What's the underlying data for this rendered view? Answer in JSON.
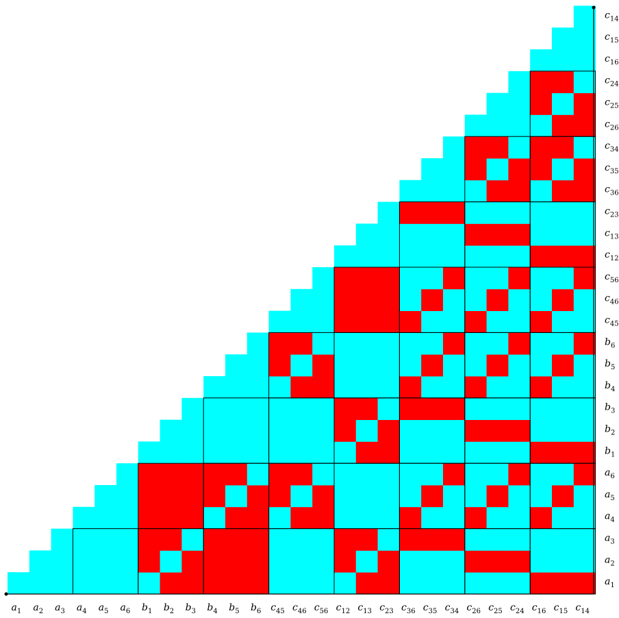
{
  "colors": {
    "one": "#ff0000",
    "zero": "#00ffff",
    "grid": "#000000"
  },
  "variables": [
    {
      "base": "a",
      "sub": "1"
    },
    {
      "base": "a",
      "sub": "2"
    },
    {
      "base": "a",
      "sub": "3"
    },
    {
      "base": "a",
      "sub": "4"
    },
    {
      "base": "a",
      "sub": "5"
    },
    {
      "base": "a",
      "sub": "6"
    },
    {
      "base": "b",
      "sub": "1"
    },
    {
      "base": "b",
      "sub": "2"
    },
    {
      "base": "b",
      "sub": "3"
    },
    {
      "base": "b",
      "sub": "4"
    },
    {
      "base": "b",
      "sub": "5"
    },
    {
      "base": "b",
      "sub": "6"
    },
    {
      "base": "c",
      "sub": "45"
    },
    {
      "base": "c",
      "sub": "46"
    },
    {
      "base": "c",
      "sub": "56"
    },
    {
      "base": "c",
      "sub": "12"
    },
    {
      "base": "c",
      "sub": "13"
    },
    {
      "base": "c",
      "sub": "23"
    },
    {
      "base": "c",
      "sub": "36"
    },
    {
      "base": "c",
      "sub": "35"
    },
    {
      "base": "c",
      "sub": "34"
    },
    {
      "base": "c",
      "sub": "26"
    },
    {
      "base": "c",
      "sub": "25"
    },
    {
      "base": "c",
      "sub": "24"
    },
    {
      "base": "c",
      "sub": "16"
    },
    {
      "base": "c",
      "sub": "15"
    },
    {
      "base": "c",
      "sub": "14"
    }
  ],
  "blocks": [
    {
      "row": 0,
      "col": 0,
      "pattern": "tri"
    },
    {
      "row": 0,
      "col": 1,
      "pattern": "zero"
    },
    {
      "row": 0,
      "col": 2,
      "pattern": "ident_comp"
    },
    {
      "row": 0,
      "col": 3,
      "pattern": "one"
    },
    {
      "row": 0,
      "col": 4,
      "pattern": "zero"
    },
    {
      "row": 0,
      "col": 5,
      "pattern": "ident_comp_rev"
    },
    {
      "row": 0,
      "col": 6,
      "pattern": "rows_top2"
    },
    {
      "row": 0,
      "col": 7,
      "pattern": "rows_mid"
    },
    {
      "row": 0,
      "col": 8,
      "pattern": "rows_bottom"
    },
    {
      "row": 1,
      "col": 1,
      "pattern": "tri"
    },
    {
      "row": 1,
      "col": 2,
      "pattern": "one"
    },
    {
      "row": 1,
      "col": 3,
      "pattern": "ident_comp_rev"
    },
    {
      "row": 1,
      "col": 4,
      "pattern": "ident_comp_rev"
    },
    {
      "row": 1,
      "col": 5,
      "pattern": "zero"
    },
    {
      "row": 1,
      "col": 6,
      "pattern": "anti_ident"
    },
    {
      "row": 1,
      "col": 7,
      "pattern": "anti_ident"
    },
    {
      "row": 1,
      "col": 8,
      "pattern": "anti_ident"
    },
    {
      "row": 2,
      "col": 2,
      "pattern": "tri"
    },
    {
      "row": 2,
      "col": 3,
      "pattern": "zero"
    },
    {
      "row": 2,
      "col": 4,
      "pattern": "zero"
    },
    {
      "row": 2,
      "col": 5,
      "pattern": "ident_comp"
    },
    {
      "row": 2,
      "col": 6,
      "pattern": "rows_top"
    },
    {
      "row": 2,
      "col": 7,
      "pattern": "rows_mid2"
    },
    {
      "row": 2,
      "col": 8,
      "pattern": "rows_bottom2"
    },
    {
      "row": 3,
      "col": 3,
      "pattern": "tri"
    },
    {
      "row": 3,
      "col": 4,
      "pattern": "ident_comp_rev"
    },
    {
      "row": 3,
      "col": 5,
      "pattern": "zero"
    },
    {
      "row": 3,
      "col": 6,
      "pattern": "anti_ident"
    },
    {
      "row": 3,
      "col": 7,
      "pattern": "anti_ident"
    },
    {
      "row": 3,
      "col": 8,
      "pattern": "anti_ident"
    },
    {
      "row": 4,
      "col": 4,
      "pattern": "tri"
    },
    {
      "row": 4,
      "col": 5,
      "pattern": "one"
    },
    {
      "row": 4,
      "col": 6,
      "pattern": "anti_ident"
    },
    {
      "row": 4,
      "col": 7,
      "pattern": "anti_ident"
    },
    {
      "row": 4,
      "col": 8,
      "pattern": "anti_ident"
    },
    {
      "row": 5,
      "col": 5,
      "pattern": "tri"
    },
    {
      "row": 5,
      "col": 6,
      "pattern": "rows_top"
    },
    {
      "row": 5,
      "col": 7,
      "pattern": "rows_mid"
    },
    {
      "row": 5,
      "col": 8,
      "pattern": "rows_bottom"
    },
    {
      "row": 6,
      "col": 6,
      "pattern": "tri"
    },
    {
      "row": 6,
      "col": 7,
      "pattern": "ident_comp_rev"
    },
    {
      "row": 6,
      "col": 8,
      "pattern": "ident_comp_rev"
    },
    {
      "row": 7,
      "col": 7,
      "pattern": "tri"
    },
    {
      "row": 7,
      "col": 8,
      "pattern": "ident_comp_rev"
    },
    {
      "row": 8,
      "col": 8,
      "pattern": "tri"
    }
  ]
}
